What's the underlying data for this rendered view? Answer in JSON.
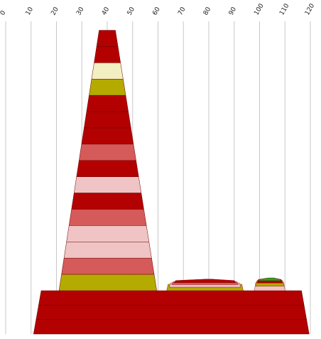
{
  "chart_data": {
    "type": "area",
    "x_ticks": [
      "0",
      "10",
      "20",
      "30",
      "40",
      "50",
      "60",
      "70",
      "80",
      "90",
      "100",
      "110",
      "120"
    ],
    "xlim": [
      0,
      120
    ],
    "grid": "vertical",
    "colors": {
      "dark_red": "#b30000",
      "medium_red": "#d55a5a",
      "light_pink": "#f0c4c4",
      "olive": "#b4aa00",
      "cream": "#f2efc2",
      "green": "#22a522"
    },
    "tower": {
      "x_bottom": [
        21.0,
        59.5
      ],
      "x_top": [
        37.0,
        43.0
      ],
      "bands_top_to_bottom": [
        "dark_red",
        "dark_red",
        "cream",
        "olive",
        "dark_red",
        "dark_red",
        "dark_red",
        "medium_red",
        "dark_red",
        "light_pink",
        "dark_red",
        "medium_red",
        "light_pink",
        "light_pink",
        "medium_red",
        "olive"
      ]
    },
    "base": {
      "x_bottom": [
        11.0,
        119.5
      ],
      "x_top": [
        14.0,
        116.5
      ],
      "color": "dark_red"
    },
    "small_peaks": [
      {
        "range": [
          63,
          94
        ],
        "peak_x": 80,
        "bands": [
          "olive",
          "light_pink",
          "medium_red",
          "dark_red"
        ]
      },
      {
        "range": [
          98,
          110
        ],
        "peak_x": 104.5,
        "bands": [
          "light_pink",
          "olive",
          "dark_red",
          "green"
        ]
      }
    ]
  }
}
